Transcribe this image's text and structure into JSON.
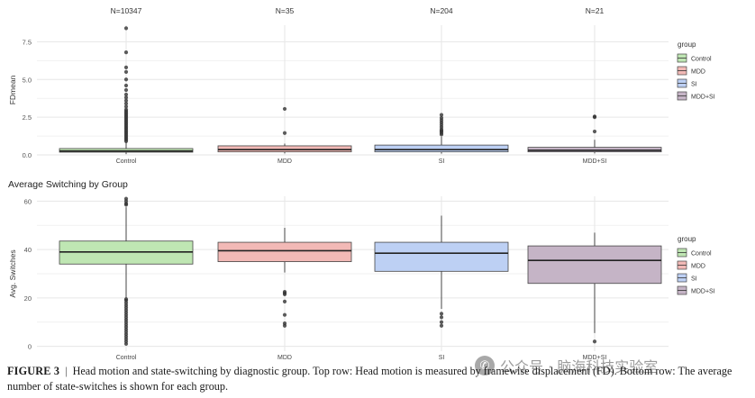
{
  "chart_data": [
    {
      "type": "boxplot",
      "panel": "top",
      "title": "",
      "xlabel": "",
      "ylabel": "FDmean",
      "ylim": [
        0,
        8.6
      ],
      "yticks": [
        0.0,
        2.5,
        5.0,
        7.5
      ],
      "ytick_labels": [
        "0.0",
        "2.5",
        "5.0",
        "7.5"
      ],
      "categories": [
        "Control",
        "MDD",
        "SI",
        "MDD+SI"
      ],
      "annotations": [
        "N=10347",
        "N=35",
        "N=204",
        "N=21"
      ],
      "legend": {
        "title": "group",
        "placement": "right",
        "entries": [
          "Control",
          "MDD",
          "SI",
          "MDD+SI"
        ]
      },
      "grid": true,
      "boxes": [
        {
          "category": "Control",
          "whisker_low": 0.05,
          "q1": 0.18,
          "median": 0.26,
          "q3": 0.42,
          "whisker_high": 0.85,
          "outliers": [
            0.9,
            1.0,
            1.1,
            1.2,
            1.3,
            1.4,
            1.5,
            1.6,
            1.7,
            1.8,
            1.9,
            2.0,
            2.1,
            2.2,
            2.3,
            2.4,
            2.5,
            2.6,
            2.7,
            2.8,
            2.9,
            3.0,
            3.2,
            3.4,
            3.6,
            3.8,
            4.0,
            4.3,
            4.6,
            5.0,
            5.5,
            5.8,
            6.8,
            8.4
          ]
        },
        {
          "category": "MDD",
          "whisker_low": 0.1,
          "q1": 0.2,
          "median": 0.35,
          "q3": 0.6,
          "whisker_high": 0.75,
          "outliers": [
            1.45,
            3.05
          ]
        },
        {
          "category": "SI",
          "whisker_low": 0.08,
          "q1": 0.2,
          "median": 0.35,
          "q3": 0.65,
          "whisker_high": 1.2,
          "outliers": [
            1.35,
            1.45,
            1.55,
            1.6,
            1.7,
            1.85,
            2.0,
            2.15,
            2.3,
            2.45,
            2.65
          ]
        },
        {
          "category": "MDD+SI",
          "whisker_low": 0.1,
          "q1": 0.2,
          "median": 0.3,
          "q3": 0.5,
          "whisker_high": 1.0,
          "outliers": [
            1.55,
            2.5,
            2.55
          ]
        }
      ]
    },
    {
      "type": "boxplot",
      "panel": "bottom",
      "title": "Average Switching by Group",
      "xlabel": "",
      "ylabel": "Avg. Switches",
      "ylim": [
        -2,
        62
      ],
      "yticks": [
        0,
        20,
        40,
        60
      ],
      "ytick_labels": [
        "0",
        "20",
        "40",
        "60"
      ],
      "categories": [
        "Control",
        "MDD",
        "SI",
        "MDD+SI"
      ],
      "legend": {
        "title": "group",
        "placement": "right",
        "entries": [
          "Control",
          "MDD",
          "SI",
          "MDD+SI"
        ]
      },
      "grid": true,
      "boxes": [
        {
          "category": "Control",
          "whisker_low": 20,
          "q1": 34,
          "median": 39,
          "q3": 43.5,
          "whisker_high": 57.5,
          "outliers": [
            1,
            2,
            3,
            4,
            5,
            6,
            7,
            8,
            9,
            10,
            11,
            12,
            13,
            14,
            15,
            16,
            17,
            18,
            19,
            19.5,
            58.5,
            59,
            60,
            61
          ]
        },
        {
          "category": "MDD",
          "whisker_low": 30.5,
          "q1": 35,
          "median": 39.5,
          "q3": 43,
          "whisker_high": 49,
          "outliers": [
            8.5,
            9.5,
            13,
            18.5,
            21.5,
            22,
            22.5
          ]
        },
        {
          "category": "SI",
          "whisker_low": 15.5,
          "q1": 31,
          "median": 38.5,
          "q3": 43,
          "whisker_high": 54,
          "outliers": [
            8.5,
            10,
            12,
            13.5
          ]
        },
        {
          "category": "MDD+SI",
          "whisker_low": 5.5,
          "q1": 26,
          "median": 35.5,
          "q3": 41.5,
          "whisker_high": 47,
          "outliers": [
            2
          ]
        }
      ]
    }
  ],
  "colors": {
    "Control": "#bfe6b3",
    "MDD": "#f2b9b6",
    "SI": "#bdd0f4",
    "MDD+SI": "#c5b4c6",
    "grid": "#e6e6e6",
    "box_stroke": "#444444",
    "outlier": "#333333"
  },
  "caption": {
    "label": "FIGURE 3",
    "separator": "|",
    "text": "Head motion and state-switching by diagnostic group. Top row: Head motion is measured by framewise displacement (FD). Bottom row: The average number of state-switches is shown for each group."
  },
  "watermark": {
    "icon": "wechat-icon",
    "text": "公众号 · 脑海科技实验室"
  }
}
